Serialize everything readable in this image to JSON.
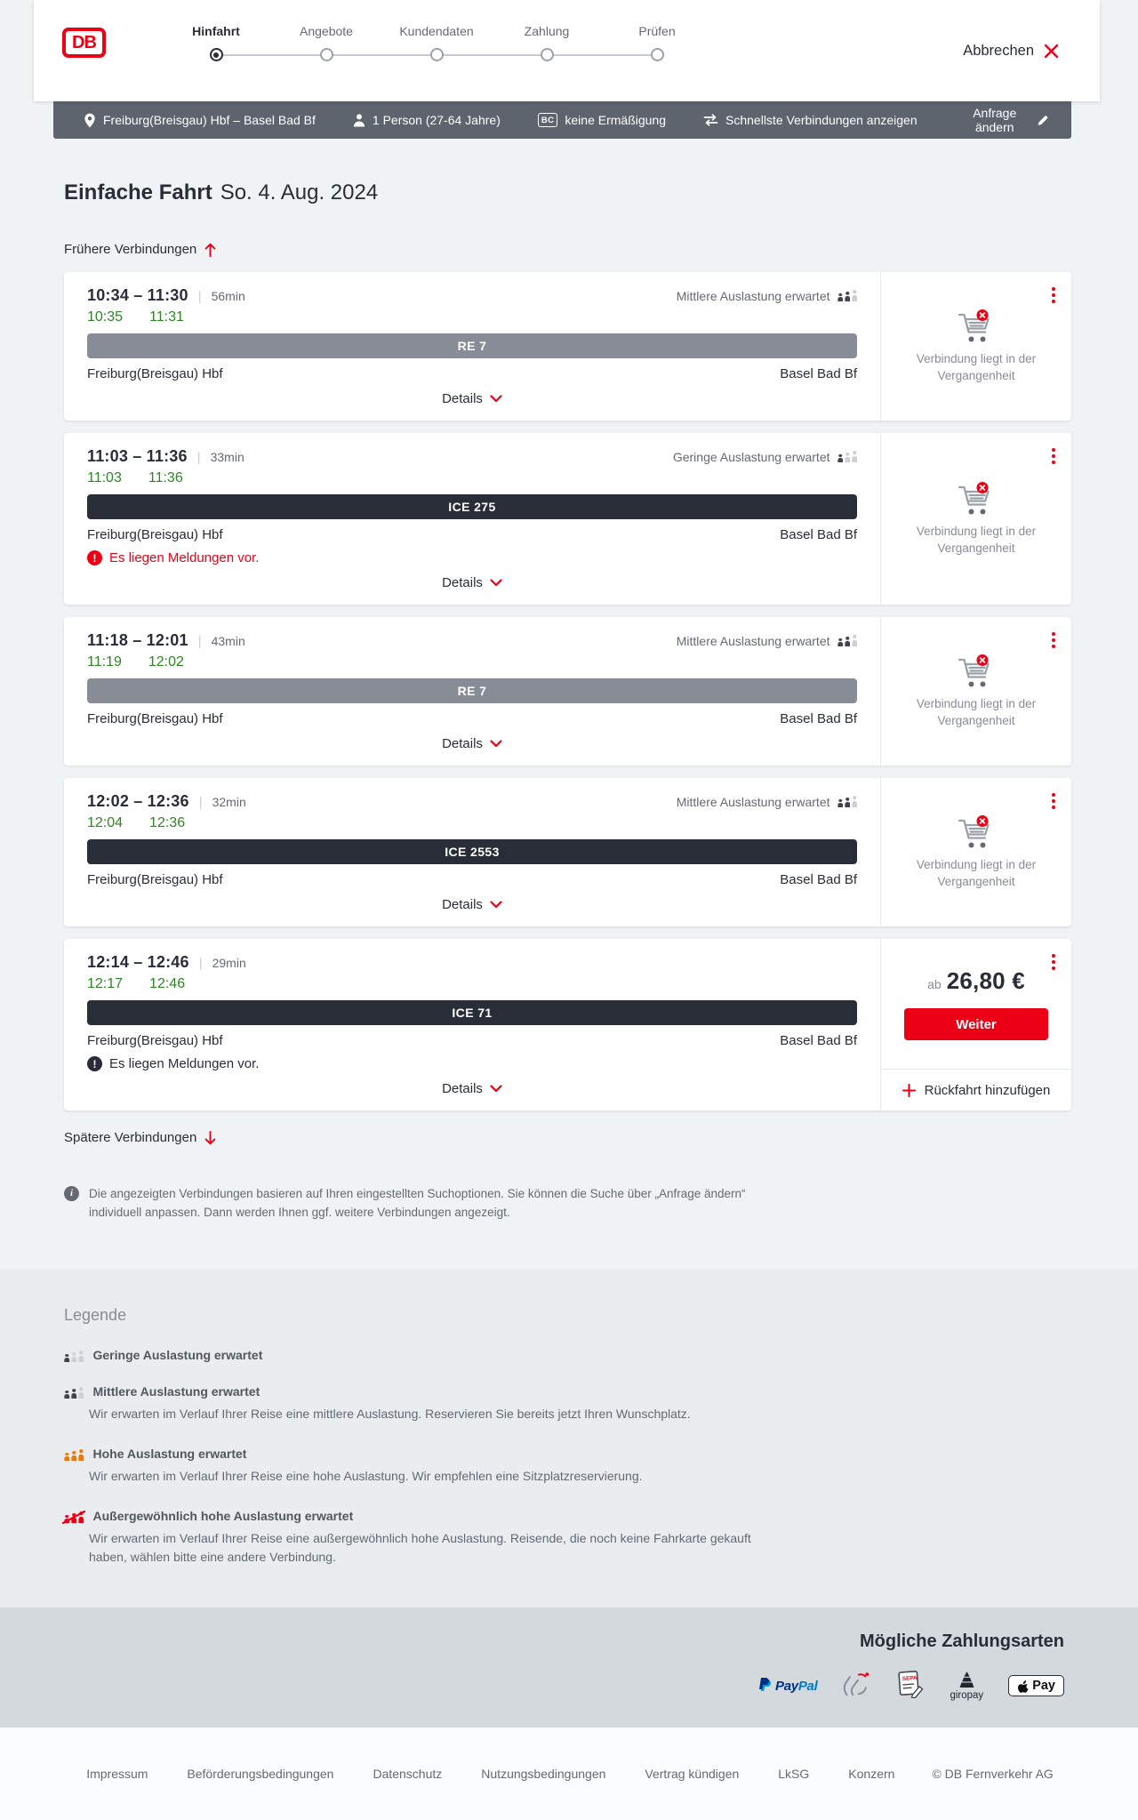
{
  "header": {
    "logo": "DB",
    "steps": [
      {
        "label": "Hinfahrt",
        "active": true
      },
      {
        "label": "Angebote",
        "active": false
      },
      {
        "label": "Kundendaten",
        "active": false
      },
      {
        "label": "Zahlung",
        "active": false
      },
      {
        "label": "Prüfen",
        "active": false
      }
    ],
    "cancel_label": "Abbrechen"
  },
  "searchbar": {
    "route": "Freiburg(Breisgau) Hbf – Basel Bad Bf",
    "passengers": "1 Person (27-64 Jahre)",
    "bahncard_badge": "BC",
    "discount": "keine Ermäßigung",
    "fastest": "Schnellste Verbindungen anzeigen",
    "change_request": "Anfrage ändern"
  },
  "results": {
    "title": "Einfache Fahrt",
    "date": "So. 4. Aug. 2024",
    "earlier_link": "Frühere Verbindungen",
    "later_link": "Spätere Verbindungen",
    "details_label": "Details",
    "past_panel_text": "Verbindung liegt in der Vergangenheit",
    "journeys": [
      {
        "depart": "10:34",
        "arrive": "11:30",
        "duration": "56min",
        "rt_depart": "10:35",
        "rt_arrive": "11:31",
        "occupancy": "Mittlere Auslastung erwartet",
        "occupancy_level": "medium",
        "train": "RE 7",
        "train_style": "regional",
        "from": "Freiburg(Breisgau) Hbf",
        "to": "Basel Bad Bf",
        "alert": null,
        "side": "past"
      },
      {
        "depart": "11:03",
        "arrive": "11:36",
        "duration": "33min",
        "rt_depart": "11:03",
        "rt_arrive": "11:36",
        "occupancy": "Geringe Auslastung erwartet",
        "occupancy_level": "low",
        "train": "ICE 275",
        "train_style": "longdistance",
        "from": "Freiburg(Breisgau) Hbf",
        "to": "Basel Bad Bf",
        "alert": {
          "text": "Es liegen Meldungen vor.",
          "severity": "red"
        },
        "side": "past"
      },
      {
        "depart": "11:18",
        "arrive": "12:01",
        "duration": "43min",
        "rt_depart": "11:19",
        "rt_arrive": "12:02",
        "occupancy": "Mittlere Auslastung erwartet",
        "occupancy_level": "medium",
        "train": "RE 7",
        "train_style": "regional",
        "from": "Freiburg(Breisgau) Hbf",
        "to": "Basel Bad Bf",
        "alert": null,
        "side": "past"
      },
      {
        "depart": "12:02",
        "arrive": "12:36",
        "duration": "32min",
        "rt_depart": "12:04",
        "rt_arrive": "12:36",
        "occupancy": "Mittlere Auslastung erwartet",
        "occupancy_level": "medium",
        "train": "ICE 2553",
        "train_style": "longdistance",
        "from": "Freiburg(Breisgau) Hbf",
        "to": "Basel Bad Bf",
        "alert": null,
        "side": "past"
      },
      {
        "depart": "12:14",
        "arrive": "12:46",
        "duration": "29min",
        "rt_depart": "12:17",
        "rt_arrive": "12:46",
        "occupancy": null,
        "occupancy_level": null,
        "train": "ICE 71",
        "train_style": "longdistance",
        "from": "Freiburg(Breisgau) Hbf",
        "to": "Basel Bad Bf",
        "alert": {
          "text": "Es liegen Meldungen vor.",
          "severity": "dark"
        },
        "side": "price",
        "price_prefix": "ab",
        "price": "26,80 €",
        "cta": "Weiter",
        "add_return": "Rückfahrt hinzufügen"
      }
    ],
    "info_note": "Die angezeigten Verbindungen basieren auf Ihren eingestellten Suchoptionen. Sie können die Suche über „Anfrage ändern“ individuell anpassen. Dann werden Ihnen ggf. weitere Verbindungen angezeigt."
  },
  "legend": {
    "title": "Legende",
    "items": [
      {
        "level": "low",
        "label": "Geringe Auslastung erwartet",
        "description": ""
      },
      {
        "level": "medium",
        "label": "Mittlere Auslastung erwartet",
        "description": "Wir erwarten im Verlauf Ihrer Reise eine mittlere Auslastung. Reservieren Sie bereits jetzt Ihren Wunschplatz."
      },
      {
        "level": "high",
        "label": "Hohe Auslastung erwartet",
        "description": "Wir erwarten im Verlauf Ihrer Reise eine hohe Auslastung. Wir empfehlen eine Sitzplatzreservierung."
      },
      {
        "level": "exceptional",
        "label": "Außergewöhnlich hohe Auslastung erwartet",
        "description": "Wir erwarten im Verlauf Ihrer Reise eine außergewöhnlich hohe Auslastung. Reisende, die noch keine Fahrkarte gekauft haben, wählen bitte eine andere Verbindung."
      }
    ]
  },
  "payments": {
    "title": "Mögliche Zahlungsarten",
    "methods": [
      {
        "icon": "paypal",
        "text": "PayPal"
      },
      {
        "icon": "hands-card",
        "text": ""
      },
      {
        "icon": "sepa-document",
        "text": "SEPA"
      },
      {
        "icon": "giropay",
        "text": "giropay"
      },
      {
        "icon": "apple-pay",
        "text": "Pay"
      }
    ]
  },
  "footer": {
    "links": [
      "Impressum",
      "Beförderungsbedingungen",
      "Datenschutz",
      "Nutzungsbedingungen",
      "Vertrag kündigen",
      "LkSG",
      "Konzern"
    ],
    "copyright": "© DB Fernverkehr AG"
  },
  "colors": {
    "accent": "#ec0016",
    "dark": "#282d37",
    "gray": "#646973",
    "light_gray": "#878c96",
    "green": "#2e8525",
    "bar_bg": "#5d646e",
    "regional_line": "#878c96",
    "longdistance_line": "#282d37",
    "occupancy_dark": "#3f444d",
    "occupancy_light": "#cdd1d6",
    "occupancy_high": "#f07800",
    "page_bg": "#f0f3f6"
  }
}
